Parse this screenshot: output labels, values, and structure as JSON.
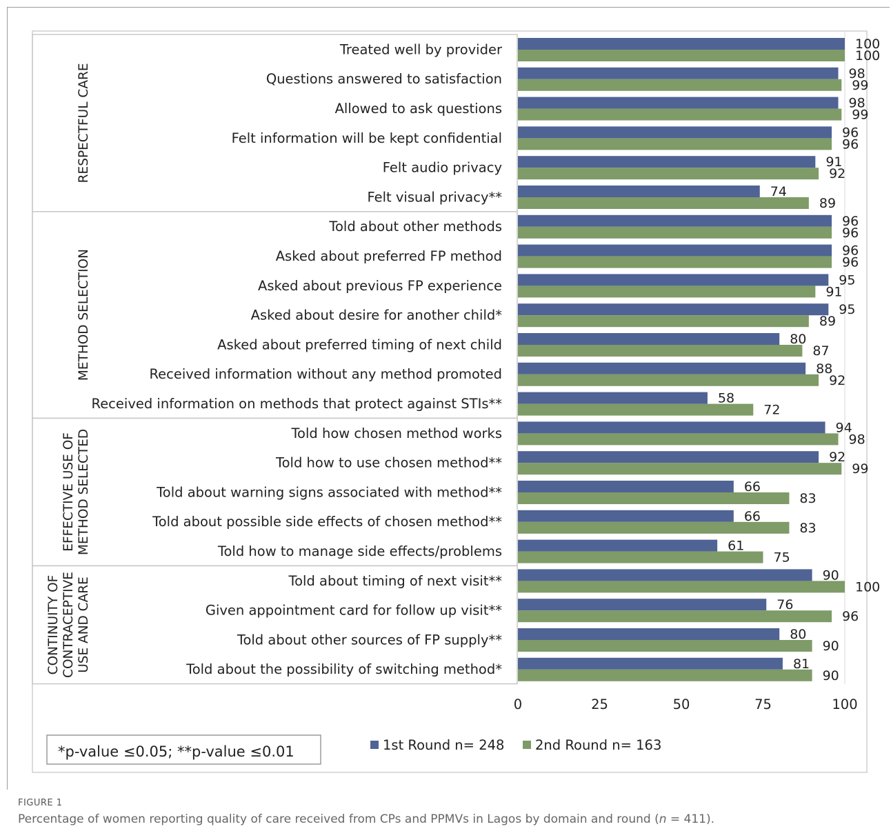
{
  "figure_label": "FIGURE 1",
  "caption": {
    "before": "Percentage of women reporting quality of care received from CPs and PPMVs in Lagos by domain and round (",
    "n_symbol": "n",
    "after": " = 411)."
  },
  "footnote": "*p-value ≤0.05; **p-value ≤0.01",
  "colors": {
    "round1": "#4f6394",
    "round2": "#7e9b68"
  },
  "chart_data": {
    "type": "bar",
    "orientation": "horizontal",
    "title": "",
    "xlim": [
      0,
      100
    ],
    "xticks": [
      "0",
      "25",
      "50",
      "75",
      "100"
    ],
    "legend_position": "bottom",
    "series": [
      {
        "name": "1st Round n= 248"
      },
      {
        "name": "2nd Round n= 163"
      }
    ],
    "groups": [
      {
        "name_lines": [
          "RESPECTFUL CARE"
        ],
        "items": [
          {
            "label": "Treated well by provider",
            "v1": 100,
            "v2": 100
          },
          {
            "label": "Questions answered to satisfaction",
            "v1": 98,
            "v2": 99
          },
          {
            "label": "Allowed to ask questions",
            "v1": 98,
            "v2": 99
          },
          {
            "label": "Felt information will be kept confidential",
            "v1": 96,
            "v2": 96
          },
          {
            "label": "Felt audio privacy",
            "v1": 91,
            "v2": 92
          },
          {
            "label": "Felt visual privacy**",
            "v1": 74,
            "v2": 89
          }
        ]
      },
      {
        "name_lines": [
          "METHOD SELECTION"
        ],
        "items": [
          {
            "label": "Told about other methods",
            "v1": 96,
            "v2": 96
          },
          {
            "label": "Asked about preferred FP method",
            "v1": 96,
            "v2": 96
          },
          {
            "label": "Asked about previous FP experience",
            "v1": 95,
            "v2": 91
          },
          {
            "label": "Asked about desire for another child*",
            "v1": 95,
            "v2": 89
          },
          {
            "label": "Asked about preferred timing of next child",
            "v1": 80,
            "v2": 87
          },
          {
            "label": "Received information without any method promoted",
            "v1": 88,
            "v2": 92
          },
          {
            "label": "Received information on methods that protect against STIs**",
            "v1": 58,
            "v2": 72
          }
        ]
      },
      {
        "name_lines": [
          "EFFECTIVE USE OF",
          "METHOD SELECTED"
        ],
        "items": [
          {
            "label": "Told how chosen method works",
            "v1": 94,
            "v2": 98
          },
          {
            "label": "Told how to use chosen method**",
            "v1": 92,
            "v2": 99
          },
          {
            "label": "Told about warning signs associated with method**",
            "v1": 66,
            "v2": 83
          },
          {
            "label": "Told about possible side effects of chosen method**",
            "v1": 66,
            "v2": 83
          },
          {
            "label": "Told how to manage side effects/problems",
            "v1": 61,
            "v2": 75
          }
        ]
      },
      {
        "name_lines": [
          "CONTINUITY OF",
          "CONTRACEPTIVE",
          "USE AND CARE"
        ],
        "items": [
          {
            "label": "Told about timing of next visit**",
            "v1": 90,
            "v2": 100
          },
          {
            "label": "Given appointment card for follow up visit**",
            "v1": 76,
            "v2": 96
          },
          {
            "label": "Told about other sources of FP supply**",
            "v1": 80,
            "v2": 90
          },
          {
            "label": "Told about the possibility of switching method*",
            "v1": 81,
            "v2": 90
          }
        ]
      }
    ]
  }
}
